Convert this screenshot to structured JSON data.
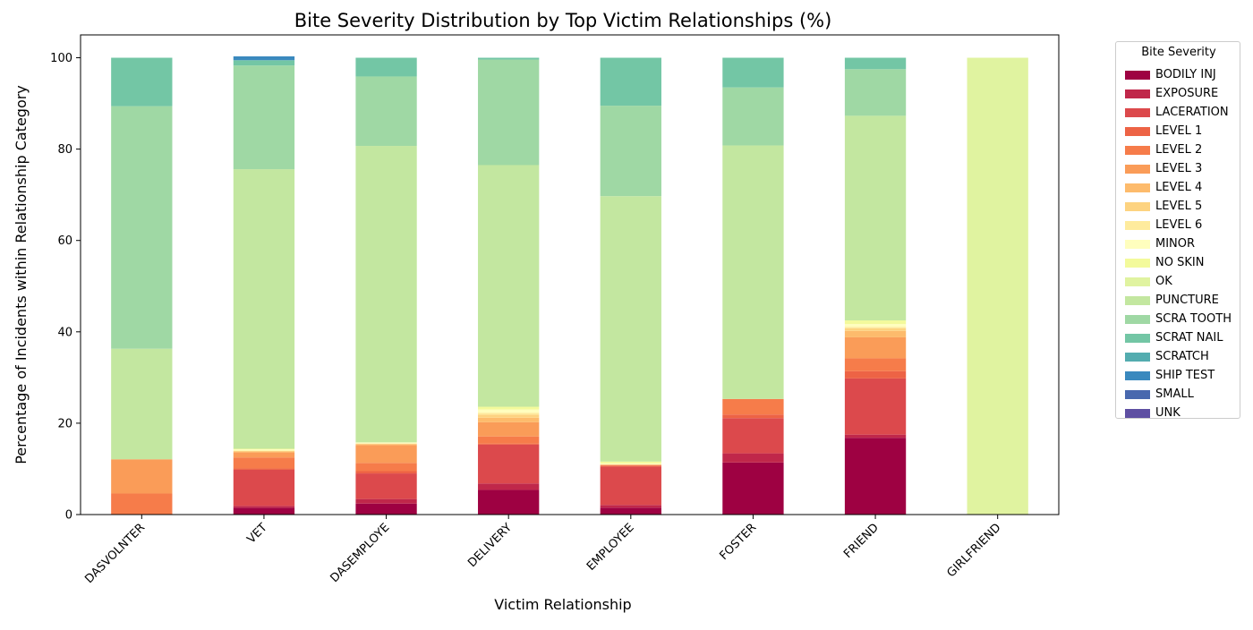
{
  "chart_data": {
    "type": "bar",
    "stacked": true,
    "title": "Bite Severity Distribution by Top Victim Relationships (%)",
    "xlabel": "Victim Relationship",
    "ylabel": "Percentage of Incidents within Relationship Category",
    "ylim": [
      0,
      105
    ],
    "yticks": [
      "0",
      "20",
      "40",
      "60",
      "80",
      "100"
    ],
    "grid": false,
    "legend_title": "Bite Severity",
    "legend_position": "outside-right",
    "categories": [
      "DASVOLNTER",
      "VET",
      "DASEMPLOYE",
      "DELIVERY",
      "EMPLOYEE",
      "FOSTER",
      "FRIEND",
      "GIRLFRIEND"
    ],
    "series": [
      {
        "name": "BODILY INJ",
        "color": "#9e0142",
        "values": [
          0,
          1.5,
          2.4,
          5.4,
          1.5,
          11.4,
          16.8,
          0
        ]
      },
      {
        "name": "EXPOSURE",
        "color": "#c0274a",
        "values": [
          0,
          0.4,
          1.0,
          1.4,
          0.6,
          2.0,
          0.7,
          0
        ]
      },
      {
        "name": "LACERATION",
        "color": "#dc494c",
        "values": [
          0,
          7.9,
          5.6,
          8.5,
          8.4,
          7.7,
          12.3,
          0
        ]
      },
      {
        "name": "LEVEL 1",
        "color": "#ed6345",
        "values": [
          0,
          0.3,
          0.5,
          0.2,
          0.2,
          0.8,
          1.6,
          0
        ]
      },
      {
        "name": "LEVEL 2",
        "color": "#f67c4a",
        "values": [
          4.6,
          2.4,
          1.8,
          1.6,
          0.2,
          3.4,
          2.8,
          0
        ]
      },
      {
        "name": "LEVEL 3",
        "color": "#fa9c58",
        "values": [
          7.5,
          1.1,
          3.9,
          3.1,
          0,
          0,
          4.6,
          0
        ]
      },
      {
        "name": "LEVEL 4",
        "color": "#fdbb6c",
        "values": [
          0,
          0.2,
          0.2,
          1.0,
          0,
          0,
          1.4,
          0
        ]
      },
      {
        "name": "LEVEL 5",
        "color": "#fdd380",
        "values": [
          0,
          0.1,
          0.1,
          0.7,
          0,
          0,
          0.6,
          0
        ]
      },
      {
        "name": "LEVEL 6",
        "color": "#feeb9d",
        "values": [
          0,
          0.1,
          0.1,
          0.4,
          0,
          0,
          0.3,
          0
        ]
      },
      {
        "name": "MINOR",
        "color": "#fffebe",
        "values": [
          0,
          0.3,
          0.2,
          0.7,
          0.3,
          0,
          0.6,
          0
        ]
      },
      {
        "name": "NO SKIN",
        "color": "#f3fa9b",
        "values": [
          0,
          0.1,
          0,
          0.6,
          0.4,
          0,
          0.8,
          0
        ]
      },
      {
        "name": "OK",
        "color": "#e0f3a0",
        "values": [
          0,
          0,
          0,
          0,
          0,
          0,
          0,
          100
        ]
      },
      {
        "name": "PUNCTURE",
        "color": "#c3e7a0",
        "values": [
          24.2,
          61.2,
          64.9,
          52.9,
          58.1,
          55.5,
          44.8,
          0
        ]
      },
      {
        "name": "SCRA TOOTH",
        "color": "#9fd8a4",
        "values": [
          53.1,
          22.7,
          15.2,
          23.1,
          19.8,
          12.7,
          10.2,
          0
        ]
      },
      {
        "name": "SCRAT NAIL",
        "color": "#73c6a5",
        "values": [
          10.6,
          1.1,
          4.1,
          0.4,
          10.5,
          6.5,
          2.5,
          0
        ]
      },
      {
        "name": "SCRATCH",
        "color": "#53acaf",
        "values": [
          0,
          0.1,
          0,
          0,
          0,
          0,
          0,
          0
        ]
      },
      {
        "name": "SHIP TEST",
        "color": "#3a89be",
        "values": [
          0,
          0.8,
          0,
          0,
          0,
          0,
          0,
          0
        ]
      },
      {
        "name": "SMALL",
        "color": "#4868ae",
        "values": [
          0,
          0,
          0,
          0,
          0,
          0,
          0,
          0
        ]
      },
      {
        "name": "UNK",
        "color": "#5e4fa2",
        "values": [
          0,
          0,
          0,
          0,
          0,
          0,
          0,
          0
        ]
      }
    ]
  }
}
